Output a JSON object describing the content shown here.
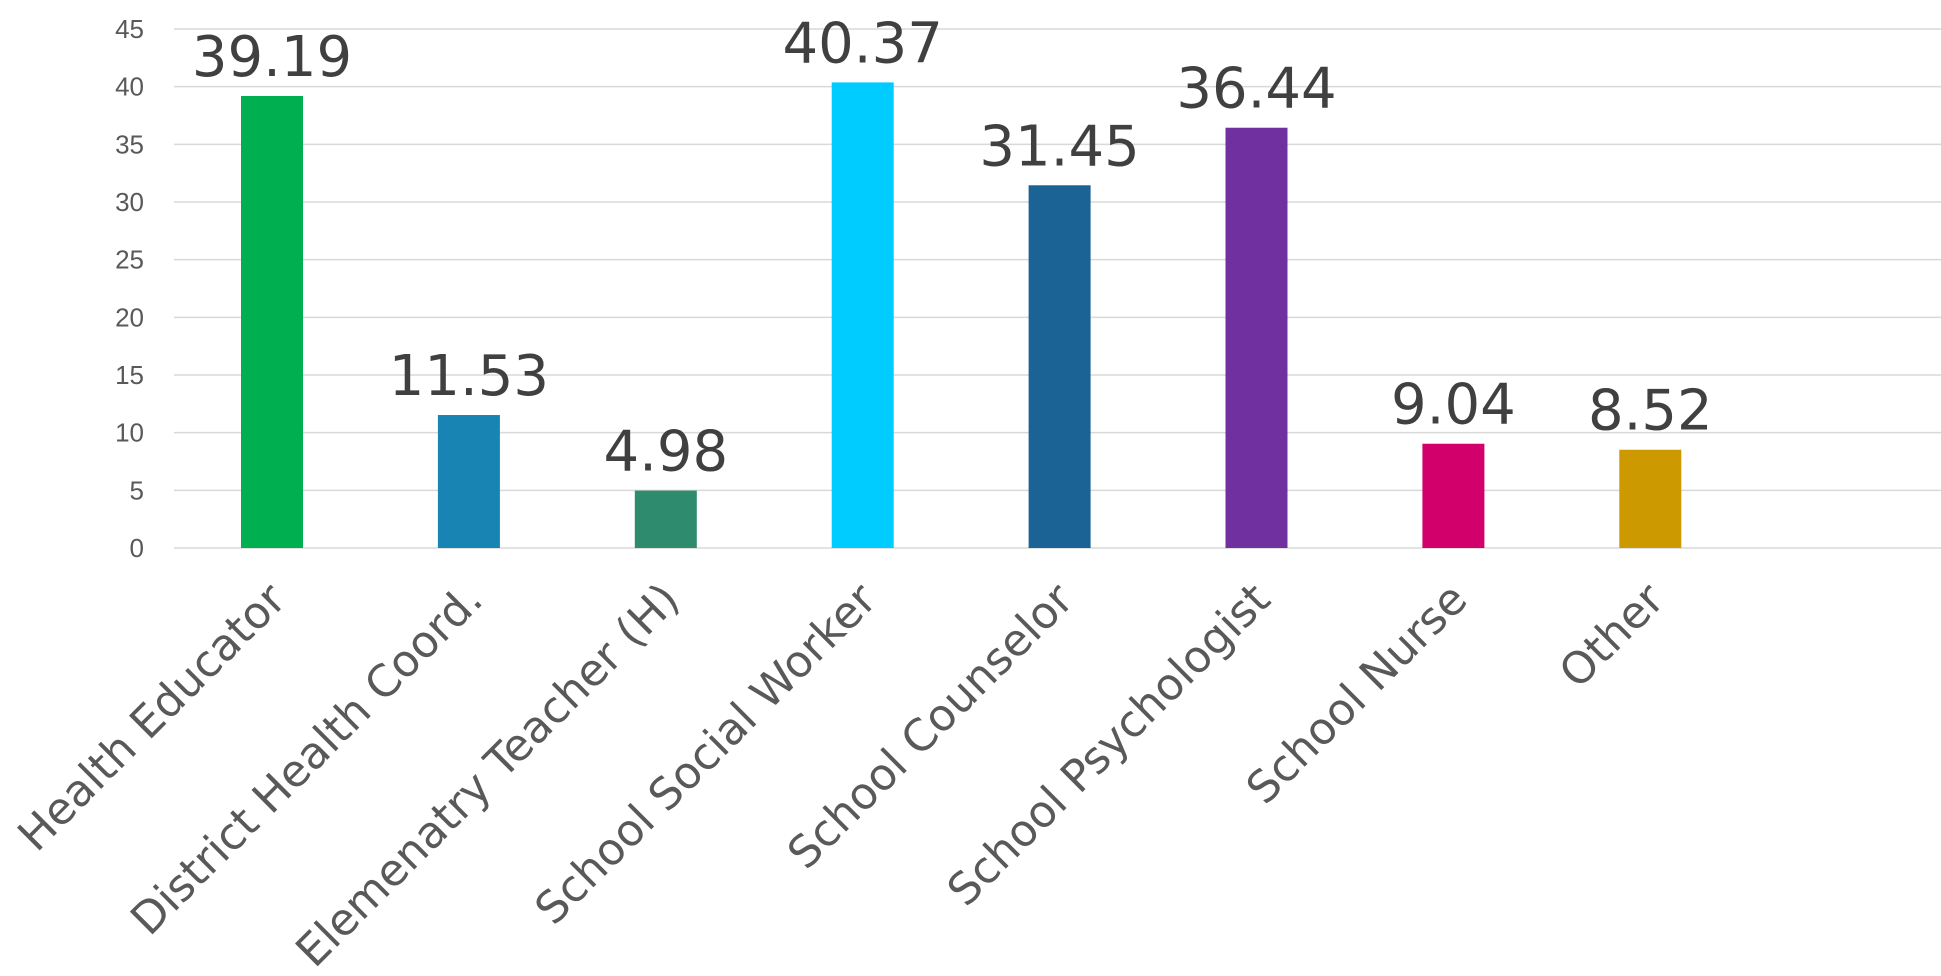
{
  "chart_data": {
    "type": "bar",
    "categories": [
      "Health Educator",
      "District Health Coord.",
      "Elemenatry Teacher (H)",
      "School Social Worker",
      "School Counselor",
      "School Psychologist",
      "School Nurse",
      "Other"
    ],
    "values": [
      39.19,
      11.53,
      4.98,
      40.37,
      31.45,
      36.44,
      9.04,
      8.52
    ],
    "data_labels": [
      "39.19",
      "11.53",
      "4.98",
      "40.37",
      "31.45",
      "36.44",
      "9.04",
      "8.52"
    ],
    "bar_colors": [
      "#00b050",
      "#1784b3",
      "#2e8b6e",
      "#00ccff",
      "#1b6394",
      "#7030a0",
      "#d1006b",
      "#cc9900"
    ],
    "ylim": [
      0,
      45
    ],
    "y_ticks": [
      "0",
      "5",
      "10",
      "15",
      "20",
      "25",
      "30",
      "35",
      "40",
      "45"
    ],
    "grid": true,
    "legend": "none",
    "title": "",
    "xlabel": "",
    "ylabel": ""
  }
}
